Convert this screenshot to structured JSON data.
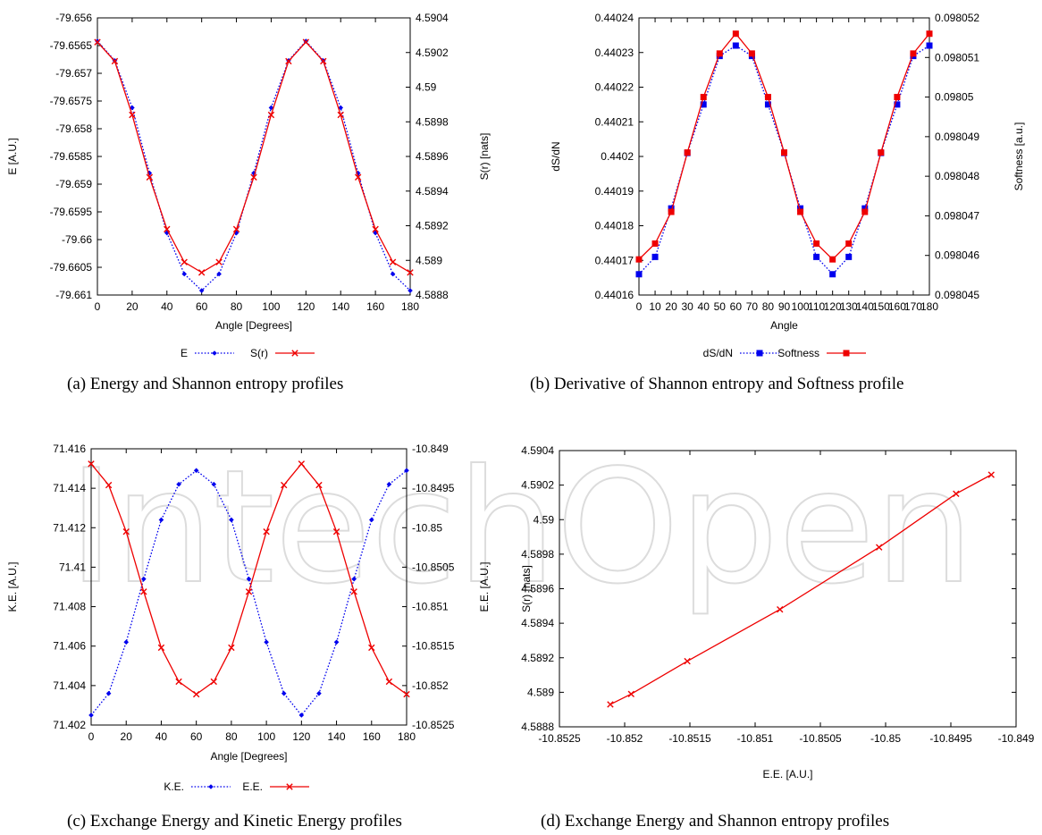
{
  "watermark": "IntechOpen",
  "chart_data": [
    {
      "type": "line",
      "caption": "(a)  Energy and Shannon entropy profiles",
      "xlabel": "Angle [Degrees]",
      "ylabel_left": "E [A.U.]",
      "ylabel_right": "S(r) [nats]",
      "xlim": [
        0,
        180
      ],
      "ylim_left": [
        -79.661,
        -79.656
      ],
      "ylim_right": [
        4.5888,
        4.5904
      ],
      "xticks": [
        "0",
        "20",
        "40",
        "60",
        "80",
        "100",
        "120",
        "140",
        "160",
        "180"
      ],
      "yticks_left": [
        "-79.656",
        "-79.6565",
        "-79.657",
        "-79.6575",
        "-79.658",
        "-79.6585",
        "-79.659",
        "-79.6595",
        "-79.66",
        "-79.6605",
        "-79.661"
      ],
      "yticks_right": [
        "4.5904",
        "4.5902",
        "4.59",
        "4.5898",
        "4.5896",
        "4.5894",
        "4.5892",
        "4.589",
        "4.5888"
      ],
      "legend_position": "bottom",
      "x": [
        0,
        10,
        20,
        30,
        40,
        50,
        60,
        70,
        80,
        90,
        100,
        110,
        120,
        130,
        140,
        150,
        160,
        170,
        180
      ],
      "series": [
        {
          "name": "E",
          "axis": "left",
          "color": "#0000ee",
          "dash": "dotted",
          "marker": "diamond",
          "values": [
            -79.65642,
            -79.65677,
            -79.65762,
            -79.6588,
            -79.65988,
            -79.66062,
            -79.66092,
            -79.66062,
            -79.65988,
            -79.6588,
            -79.65762,
            -79.65677,
            -79.65642,
            -79.65677,
            -79.65762,
            -79.6588,
            -79.65988,
            -79.66062,
            -79.66092
          ]
        },
        {
          "name": "S(r)",
          "axis": "right",
          "color": "#ee0000",
          "dash": "solid",
          "marker": "x",
          "values": [
            4.59026,
            4.59015,
            4.58984,
            4.58948,
            4.58918,
            4.58899,
            4.58893,
            4.58899,
            4.58918,
            4.58948,
            4.58984,
            4.59015,
            4.59026,
            4.59015,
            4.58984,
            4.58948,
            4.58918,
            4.58899,
            4.58893
          ]
        }
      ]
    },
    {
      "type": "line",
      "caption": "(b)  Derivative of Shannon entropy and Softness profile",
      "xlabel": "Angle",
      "ylabel_left": "dS/dN",
      "ylabel_right": "Softness [a.u.]",
      "xlim": [
        0,
        180
      ],
      "ylim_left": [
        0.44016,
        0.44024
      ],
      "ylim_right": [
        0.098045,
        0.098052
      ],
      "xticks": [
        "0",
        "10",
        "20",
        "30",
        "40",
        "50",
        "60",
        "70",
        "80",
        "90",
        "100",
        "110",
        "120",
        "130",
        "140",
        "150",
        "160",
        "170",
        "180"
      ],
      "yticks_left": [
        "0.44024",
        "0.44023",
        "0.44022",
        "0.44021",
        "0.4402",
        "0.44019",
        "0.44018",
        "0.44017",
        "0.44016"
      ],
      "yticks_right": [
        "0.098052",
        "0.098051",
        "0.09805",
        "0.098049",
        "0.098048",
        "0.098047",
        "0.098046",
        "0.098045"
      ],
      "legend_position": "bottom",
      "x": [
        0,
        10,
        20,
        30,
        40,
        50,
        60,
        70,
        80,
        90,
        100,
        110,
        120,
        130,
        140,
        150,
        160,
        170,
        180
      ],
      "series": [
        {
          "name": "dS/dN",
          "axis": "left",
          "color": "#0000ee",
          "dash": "dotted",
          "marker": "square",
          "values": [
            0.440166,
            0.440171,
            0.440185,
            0.440201,
            0.440215,
            0.440229,
            0.440232,
            0.440229,
            0.440215,
            0.440201,
            0.440185,
            0.440171,
            0.440166,
            0.440171,
            0.440185,
            0.440201,
            0.440215,
            0.440229,
            0.440232
          ]
        },
        {
          "name": "Softness",
          "axis": "right",
          "color": "#ee0000",
          "dash": "solid",
          "marker": "square",
          "values": [
            0.0980459,
            0.0980463,
            0.0980471,
            0.0980486,
            0.09805,
            0.0980511,
            0.0980516,
            0.0980511,
            0.09805,
            0.0980486,
            0.0980471,
            0.0980463,
            0.0980459,
            0.0980463,
            0.0980471,
            0.0980486,
            0.09805,
            0.0980511,
            0.0980516
          ]
        }
      ]
    },
    {
      "type": "line",
      "caption": "(c)  Exchange Energy and Kinetic Energy profiles",
      "xlabel": "Angle [Degrees]",
      "ylabel_left": "K.E. [A.U.]",
      "ylabel_right": "E.E. [A.U.]",
      "xlim": [
        0,
        180
      ],
      "ylim_left": [
        71.402,
        71.416
      ],
      "ylim_right": [
        -10.8525,
        -10.849
      ],
      "xticks": [
        "0",
        "20",
        "40",
        "60",
        "80",
        "100",
        "120",
        "140",
        "160",
        "180"
      ],
      "yticks_left": [
        "71.416",
        "71.414",
        "71.412",
        "71.41",
        "71.408",
        "71.406",
        "71.404",
        "71.402"
      ],
      "yticks_right": [
        "-10.849",
        "-10.8495",
        "-10.85",
        "-10.8505",
        "-10.851",
        "-10.8515",
        "-10.852",
        "-10.8525"
      ],
      "legend_position": "bottom",
      "x": [
        0,
        10,
        20,
        30,
        40,
        50,
        60,
        70,
        80,
        90,
        100,
        110,
        120,
        130,
        140,
        150,
        160,
        170,
        180
      ],
      "series": [
        {
          "name": "K.E.",
          "axis": "left",
          "color": "#0000ee",
          "dash": "dotted",
          "marker": "diamond",
          "values": [
            71.4025,
            71.4036,
            71.4062,
            71.4094,
            71.4124,
            71.4142,
            71.4149,
            71.4142,
            71.4124,
            71.4094,
            71.4062,
            71.4036,
            71.4025,
            71.4036,
            71.4062,
            71.4094,
            71.4124,
            71.4142,
            71.4149
          ]
        },
        {
          "name": "E.E.",
          "axis": "right",
          "color": "#ee0000",
          "dash": "solid",
          "marker": "x",
          "values": [
            -10.84919,
            -10.84946,
            -10.85005,
            -10.85081,
            -10.85152,
            -10.85195,
            -10.85211,
            -10.85195,
            -10.85152,
            -10.85081,
            -10.85005,
            -10.84946,
            -10.84919,
            -10.84946,
            -10.85005,
            -10.85081,
            -10.85152,
            -10.85195,
            -10.85211
          ]
        }
      ]
    },
    {
      "type": "line",
      "caption": "(d)  Exchange Energy and Shannon entropy profiles",
      "xlabel": "E.E. [A.U.]",
      "ylabel_left": "S(r) [nats]",
      "xlim": [
        -10.8525,
        -10.849
      ],
      "ylim_left": [
        4.5888,
        4.5904
      ],
      "xticks": [
        "-10.8525",
        "-10.852",
        "-10.8515",
        "-10.851",
        "-10.8505",
        "-10.85",
        "-10.8495",
        "-10.849"
      ],
      "yticks_left": [
        "4.5904",
        "4.5902",
        "4.59",
        "4.5898",
        "4.5896",
        "4.5894",
        "4.5892",
        "4.589",
        "4.5888"
      ],
      "series": [
        {
          "axis": "left",
          "color": "#ee0000",
          "dash": "solid",
          "marker": "x",
          "x": [
            -10.85211,
            -10.85195,
            -10.85152,
            -10.85081,
            -10.85005,
            -10.84946,
            -10.84919
          ],
          "values": [
            4.58893,
            4.58899,
            4.58918,
            4.58948,
            4.58984,
            4.59015,
            4.59026
          ]
        }
      ]
    }
  ]
}
